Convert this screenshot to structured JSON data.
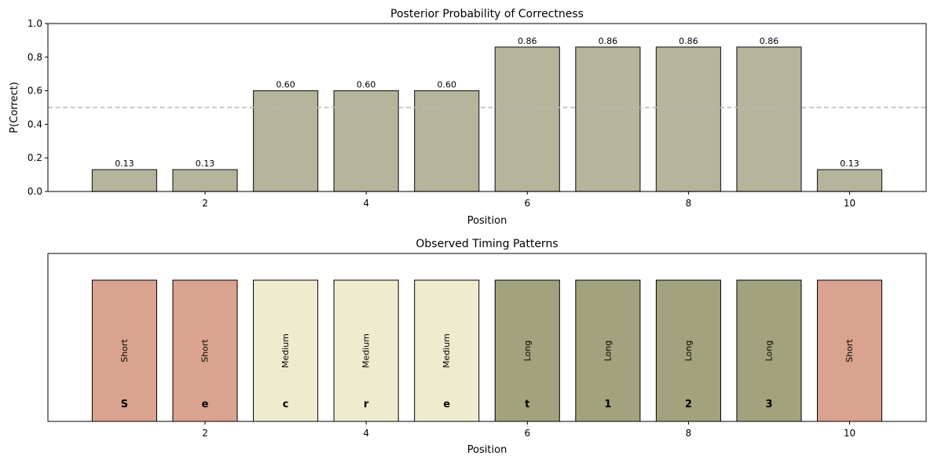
{
  "chart_data": [
    {
      "type": "bar",
      "title": "Posterior Probability of Correctness",
      "xlabel": "Position",
      "ylabel": "P(Correct)",
      "x": [
        1,
        2,
        3,
        4,
        5,
        6,
        7,
        8,
        9,
        10
      ],
      "values": [
        0.13,
        0.13,
        0.6,
        0.6,
        0.6,
        0.86,
        0.86,
        0.86,
        0.86,
        0.13
      ],
      "value_labels": [
        "0.13",
        "0.13",
        "0.60",
        "0.60",
        "0.60",
        "0.86",
        "0.86",
        "0.86",
        "0.86",
        "0.13"
      ],
      "xlim": [
        0.05,
        10.95
      ],
      "ylim": [
        0,
        1.0
      ],
      "xticks": [
        2,
        4,
        6,
        8,
        10
      ],
      "xtick_labels": [
        "2",
        "4",
        "6",
        "8",
        "10"
      ],
      "yticks": [
        0.0,
        0.2,
        0.4,
        0.6,
        0.8,
        1.0
      ],
      "ytick_labels": [
        "0.0",
        "0.2",
        "0.4",
        "0.6",
        "0.8",
        "1.0"
      ],
      "reference_line": 0.5,
      "bar_color": "#b4b59a",
      "edge_color": "#2b2b2b",
      "reference_line_color": "#b9b9b9",
      "grid": false
    },
    {
      "type": "bar",
      "title": "Observed Timing Patterns",
      "xlabel": "Position",
      "x": [
        1,
        2,
        3,
        4,
        5,
        6,
        7,
        8,
        9,
        10
      ],
      "timing": [
        "Short",
        "Short",
        "Medium",
        "Medium",
        "Medium",
        "Long",
        "Long",
        "Long",
        "Long",
        "Short"
      ],
      "characters": [
        "S",
        "e",
        "c",
        "r",
        "e",
        "t",
        "1",
        "2",
        "3",
        ""
      ],
      "xlim": [
        0.05,
        10.95
      ],
      "xticks": [
        2,
        4,
        6,
        8,
        10
      ],
      "xtick_labels": [
        "2",
        "4",
        "6",
        "8",
        "10"
      ],
      "colors": {
        "Short": "#d9a38f",
        "Medium": "#efebce",
        "Long": "#a2a27e"
      },
      "edge_color": "#000000",
      "grid": false
    }
  ]
}
